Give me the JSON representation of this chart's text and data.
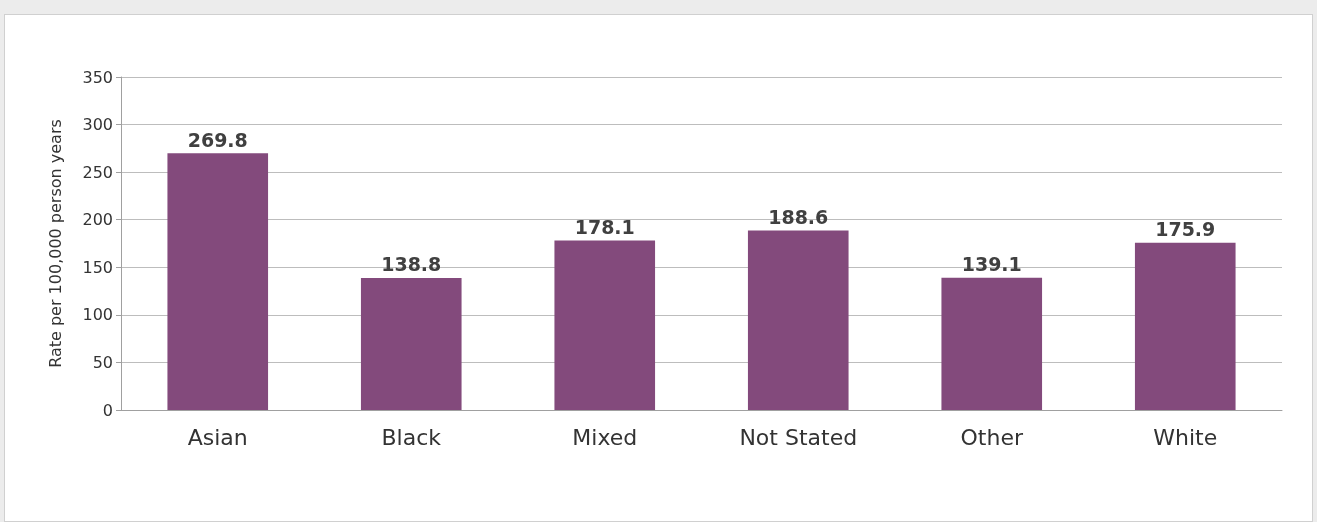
{
  "chart_data": {
    "type": "bar",
    "ylabel": "Rate per 100,000 person years",
    "categories": [
      "Asian",
      "Black",
      "Mixed",
      "Not Stated",
      "Other",
      "White"
    ],
    "values": [
      269.8,
      138.8,
      178.1,
      188.6,
      139.1,
      175.9
    ],
    "color": "#834a7c",
    "ylim": [
      0,
      350
    ],
    "yticks": [
      0,
      50,
      100,
      150,
      200,
      250,
      300,
      350
    ],
    "grid": "y",
    "data_labels": true
  }
}
